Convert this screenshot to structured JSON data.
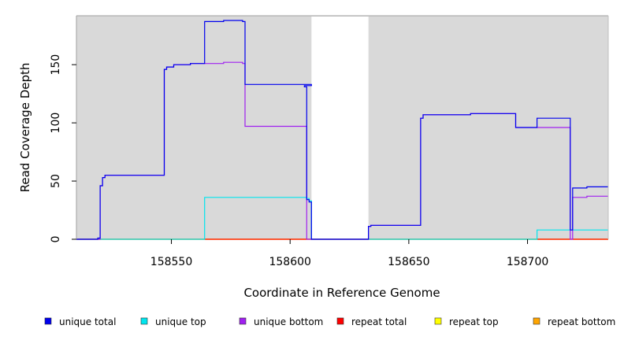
{
  "chart_data": {
    "type": "line",
    "xlabel": "Coordinate in Reference Genome",
    "ylabel": "Read Coverage Depth",
    "xlim": [
      158510,
      158734
    ],
    "ylim": [
      0,
      190
    ],
    "xticks": [
      158550,
      158600,
      158650,
      158700
    ],
    "xtick_labels": [
      "158550",
      "158600",
      "158650",
      "158700"
    ],
    "yticks": [
      0,
      50,
      100,
      150
    ],
    "ytick_labels": [
      "0",
      "50",
      "100",
      "150"
    ],
    "gap": [
      158609,
      158633
    ],
    "background": "#d9d9d9",
    "grid": false,
    "legend_position": "bottom",
    "series": [
      {
        "name": "unique total",
        "color": "#0000ee",
        "points": [
          [
            158510,
            0
          ],
          [
            158519,
            0
          ],
          [
            158519,
            1
          ],
          [
            158520,
            1
          ],
          [
            158520,
            46
          ],
          [
            158521,
            46
          ],
          [
            158521,
            53
          ],
          [
            158522,
            53
          ],
          [
            158522,
            55
          ],
          [
            158547,
            55
          ],
          [
            158547,
            146
          ],
          [
            158548,
            146
          ],
          [
            158548,
            148
          ],
          [
            158551,
            148
          ],
          [
            158551,
            150
          ],
          [
            158558,
            150
          ],
          [
            158558,
            151
          ],
          [
            158564,
            151
          ],
          [
            158564,
            187
          ],
          [
            158572,
            187
          ],
          [
            158572,
            188
          ],
          [
            158580,
            188
          ],
          [
            158580,
            187
          ],
          [
            158581,
            187
          ],
          [
            158581,
            133
          ],
          [
            158609,
            133
          ],
          [
            158609,
            132
          ],
          [
            158606,
            132
          ],
          [
            158606,
            131
          ],
          [
            158607,
            131
          ],
          [
            158607,
            34
          ],
          [
            158608,
            34
          ],
          [
            158608,
            32
          ],
          [
            158609,
            32
          ],
          [
            158609,
            0
          ],
          [
            158633,
            0
          ],
          [
            158633,
            11
          ],
          [
            158634,
            11
          ],
          [
            158634,
            12
          ],
          [
            158655,
            12
          ],
          [
            158655,
            104
          ],
          [
            158656,
            104
          ],
          [
            158656,
            107
          ],
          [
            158676,
            107
          ],
          [
            158676,
            108
          ],
          [
            158695,
            108
          ],
          [
            158695,
            96
          ],
          [
            158704,
            96
          ],
          [
            158704,
            104
          ],
          [
            158718,
            104
          ],
          [
            158718,
            8
          ],
          [
            158719,
            8
          ],
          [
            158719,
            44
          ],
          [
            158725,
            44
          ],
          [
            158725,
            45
          ],
          [
            158734,
            45
          ]
        ]
      },
      {
        "name": "unique top",
        "color": "#00e5ee",
        "points": [
          [
            158510,
            0
          ],
          [
            158564,
            0
          ],
          [
            158564,
            36
          ],
          [
            158607,
            36
          ],
          [
            158607,
            35
          ],
          [
            158608,
            35
          ],
          [
            158608,
            33
          ],
          [
            158609,
            33
          ],
          [
            158609,
            0
          ],
          [
            158704,
            0
          ],
          [
            158704,
            8
          ],
          [
            158734,
            8
          ]
        ]
      },
      {
        "name": "unique bottom",
        "color": "#a020f0",
        "points": [
          [
            158510,
            0
          ],
          [
            158520,
            0
          ],
          [
            158520,
            46
          ],
          [
            158521,
            46
          ],
          [
            158521,
            53
          ],
          [
            158522,
            53
          ],
          [
            158522,
            55
          ],
          [
            158547,
            55
          ],
          [
            158547,
            146
          ],
          [
            158548,
            146
          ],
          [
            158548,
            148
          ],
          [
            158551,
            148
          ],
          [
            158551,
            150
          ],
          [
            158558,
            150
          ],
          [
            158558,
            151
          ],
          [
            158572,
            151
          ],
          [
            158572,
            152
          ],
          [
            158580,
            152
          ],
          [
            158580,
            151
          ],
          [
            158581,
            151
          ],
          [
            158581,
            97
          ],
          [
            158607,
            97
          ],
          [
            158607,
            0
          ],
          [
            158633,
            0
          ],
          [
            158633,
            11
          ],
          [
            158634,
            11
          ],
          [
            158634,
            12
          ],
          [
            158655,
            12
          ],
          [
            158655,
            104
          ],
          [
            158656,
            104
          ],
          [
            158656,
            107
          ],
          [
            158676,
            107
          ],
          [
            158676,
            108
          ],
          [
            158695,
            108
          ],
          [
            158695,
            96
          ],
          [
            158718,
            96
          ],
          [
            158718,
            0
          ],
          [
            158719,
            0
          ],
          [
            158719,
            36
          ],
          [
            158725,
            36
          ],
          [
            158725,
            37
          ],
          [
            158734,
            37
          ]
        ]
      },
      {
        "name": "repeat total",
        "color": "#ff0000",
        "points": [
          [
            158510,
            0
          ],
          [
            158609,
            0
          ],
          [
            158633,
            0
          ],
          [
            158734,
            0
          ]
        ]
      },
      {
        "name": "repeat top",
        "color": "#ffff00",
        "points": [
          [
            158510,
            0
          ],
          [
            158609,
            0
          ],
          [
            158633,
            0
          ],
          [
            158734,
            0
          ]
        ]
      },
      {
        "name": "repeat bottom",
        "color": "#ffa500",
        "points": [
          [
            158510,
            0
          ],
          [
            158609,
            0
          ],
          [
            158633,
            0
          ],
          [
            158734,
            0
          ]
        ]
      }
    ]
  }
}
